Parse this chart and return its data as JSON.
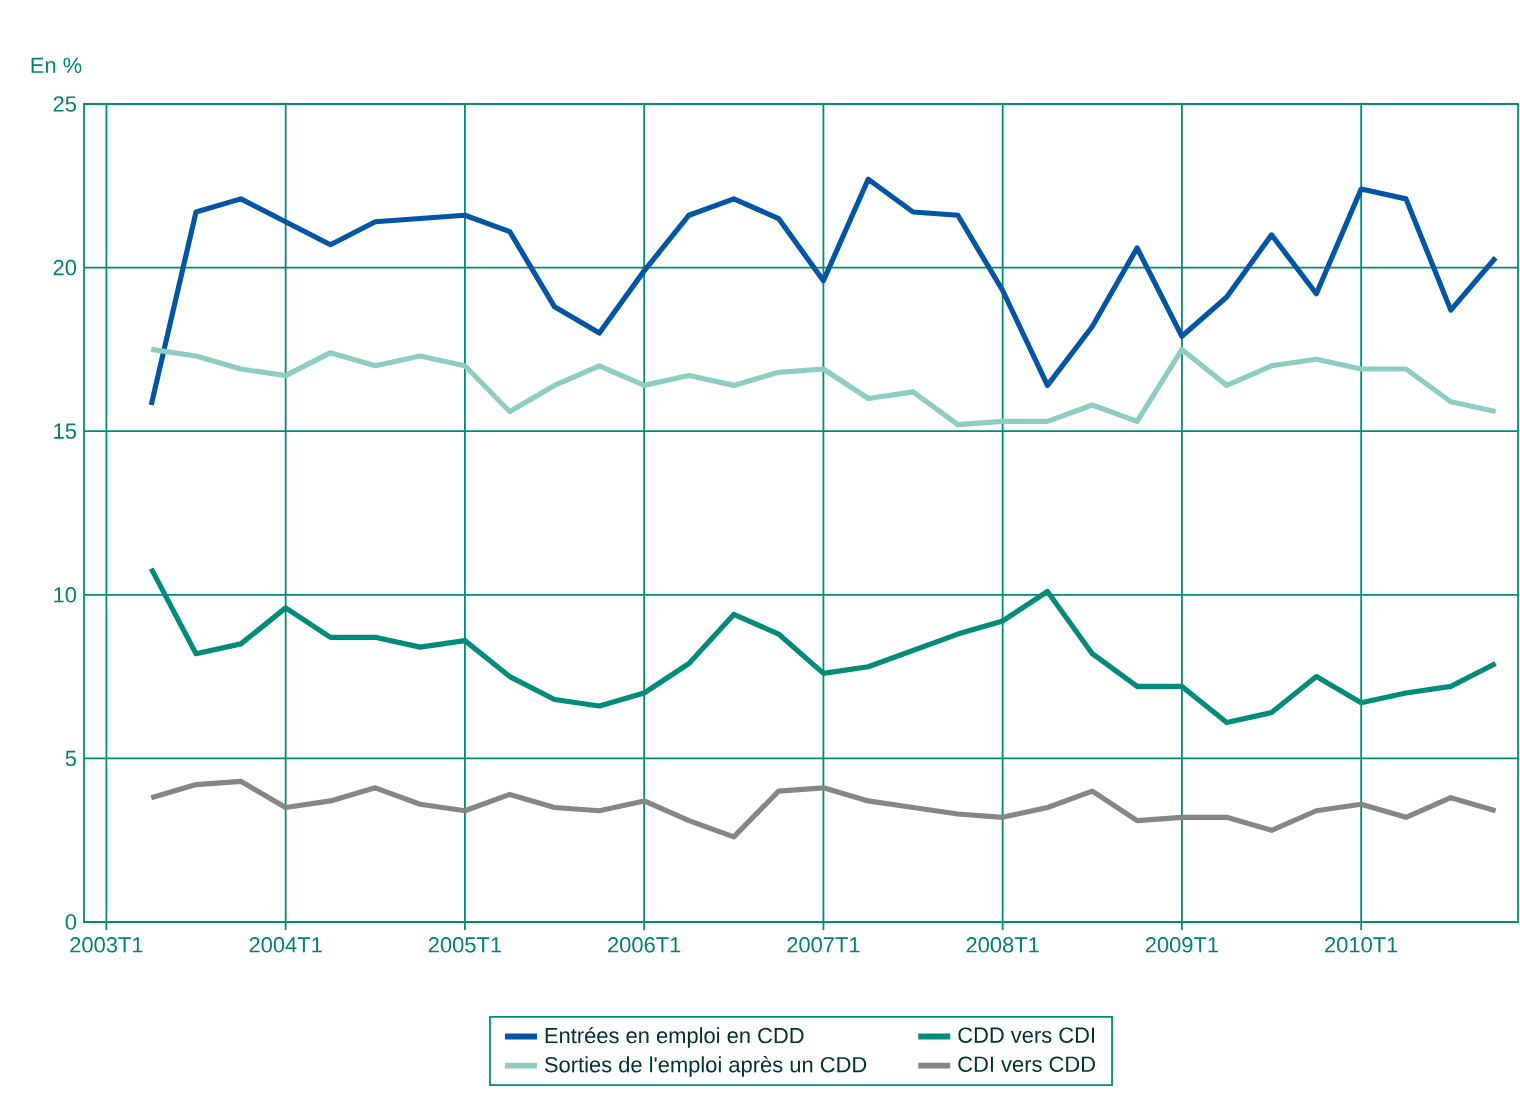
{
  "chart_data": {
    "type": "line",
    "ylabel": "En %",
    "categories": [
      "2003T1",
      null,
      null,
      null,
      "2004T1",
      null,
      null,
      null,
      "2005T1",
      null,
      null,
      null,
      "2006T1",
      null,
      null,
      null,
      "2007T1",
      null,
      null,
      null,
      "2008T1",
      null,
      null,
      null,
      "2009T1",
      null,
      null,
      null,
      "2010T1",
      null,
      null,
      null
    ],
    "ylim": [
      0,
      25
    ],
    "yticks": [
      0,
      5,
      10,
      15,
      20,
      25
    ],
    "grid": true,
    "legend": "bottom",
    "marker": "none",
    "line_style": "solid",
    "series": [
      {
        "name": "Entrées en emploi en CDD",
        "color": "#0055a4",
        "values": [
          null,
          15.8,
          21.7,
          22.1,
          21.4,
          20.7,
          21.4,
          21.5,
          21.6,
          21.1,
          18.8,
          18.0,
          19.9,
          21.6,
          22.1,
          21.5,
          19.6,
          22.7,
          21.7,
          21.6,
          19.3,
          16.4,
          18.2,
          20.6,
          17.9,
          19.1,
          21.0,
          19.2,
          22.4,
          22.1,
          18.7,
          20.3
        ]
      },
      {
        "name": "CDD vers CDI",
        "color": "#008c78",
        "values": [
          null,
          10.8,
          8.2,
          8.5,
          9.6,
          8.7,
          8.7,
          8.4,
          8.6,
          7.5,
          6.8,
          6.6,
          7.0,
          7.9,
          9.4,
          8.8,
          7.6,
          7.8,
          8.3,
          8.8,
          9.2,
          10.1,
          8.2,
          7.2,
          7.2,
          6.1,
          6.4,
          7.5,
          6.7,
          7.0,
          7.2,
          7.9
        ]
      },
      {
        "name": "Sorties de l'emploi après un CDD",
        "color": "#8ecdc2",
        "values": [
          null,
          17.5,
          17.3,
          16.9,
          16.7,
          17.4,
          17.0,
          17.3,
          17.0,
          15.6,
          16.4,
          17.0,
          16.4,
          16.7,
          16.4,
          16.8,
          16.9,
          16.0,
          16.2,
          15.2,
          15.3,
          15.3,
          15.8,
          15.3,
          17.5,
          16.4,
          17.0,
          17.2,
          16.9,
          16.9,
          15.9,
          15.6
        ]
      },
      {
        "name": "CDI vers CDD",
        "color": "#868686",
        "values": [
          null,
          3.8,
          4.2,
          4.3,
          3.5,
          3.7,
          4.1,
          3.6,
          3.4,
          3.9,
          3.5,
          3.4,
          3.7,
          3.1,
          2.6,
          4.0,
          4.1,
          3.7,
          3.5,
          3.3,
          3.2,
          3.5,
          4.0,
          3.1,
          3.2,
          3.2,
          2.8,
          3.4,
          3.6,
          3.2,
          3.8,
          3.4
        ]
      }
    ]
  }
}
